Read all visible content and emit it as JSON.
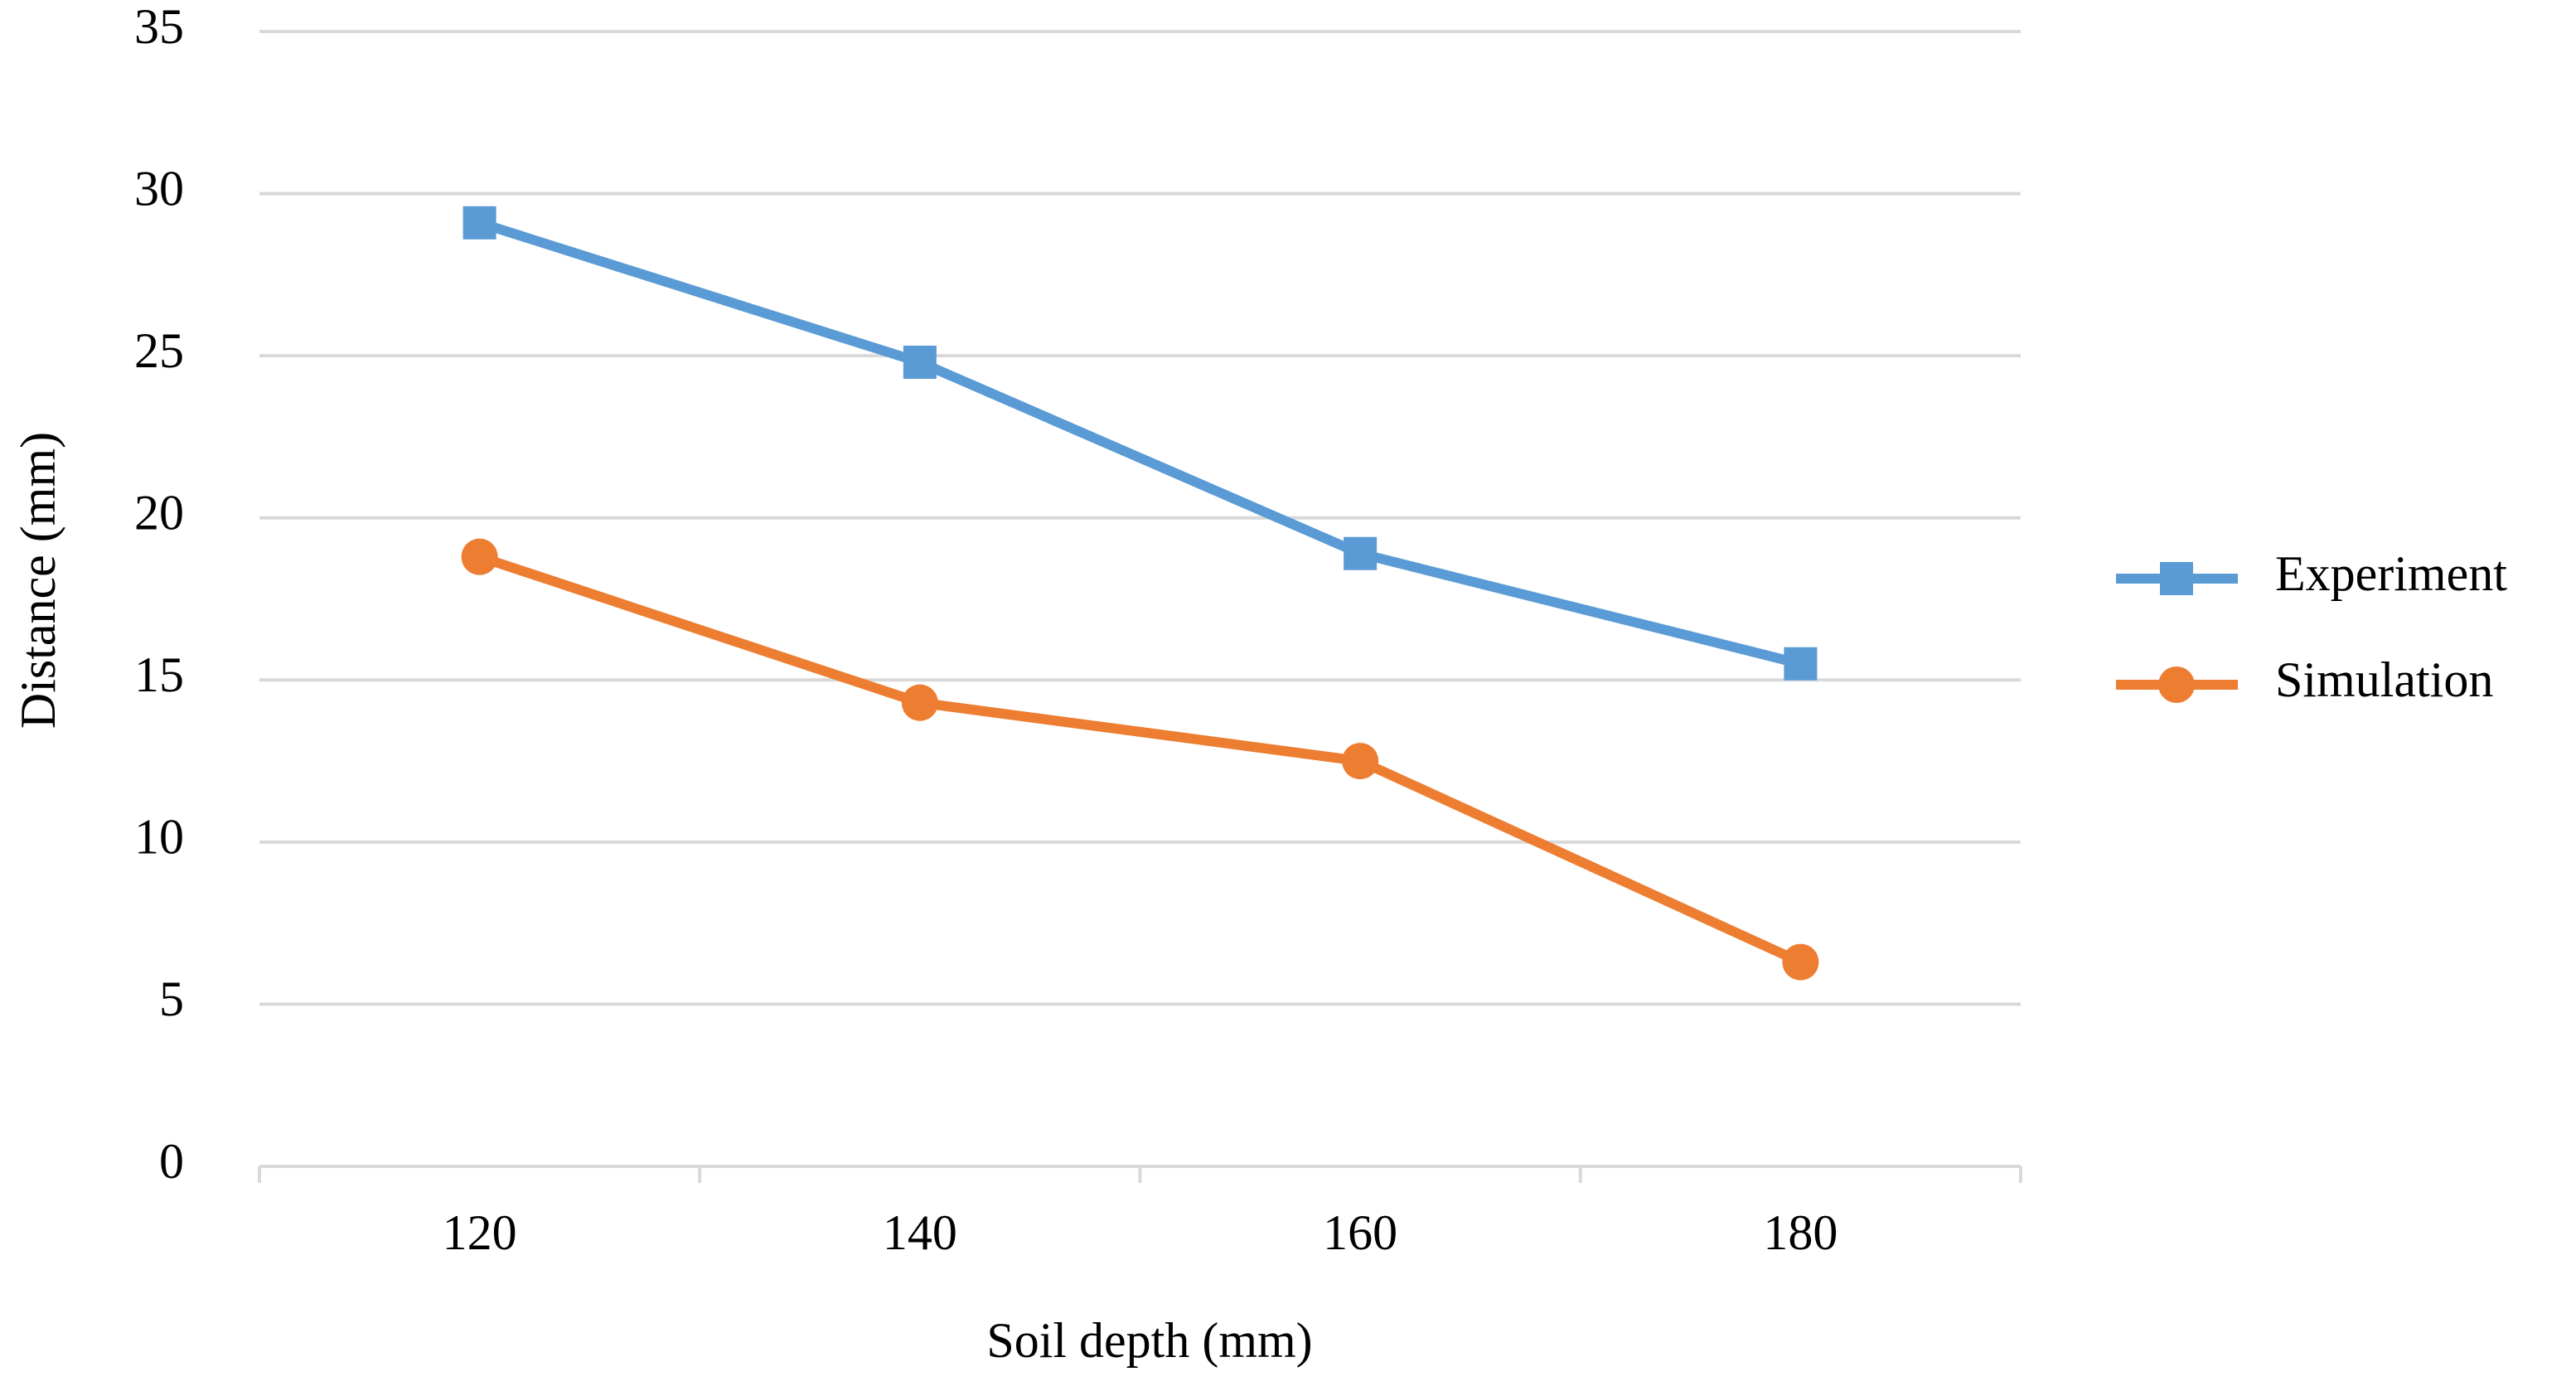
{
  "chart_data": {
    "type": "line",
    "x_label": "Soil depth (mm)",
    "y_label": "Distance (mm)",
    "categories": [
      "120",
      "140",
      "160",
      "180"
    ],
    "series": [
      {
        "name": "Experiment",
        "color": "#5b9bd5",
        "marker": "square",
        "values": [
          29.1,
          24.8,
          18.9,
          15.5
        ]
      },
      {
        "name": "Simulation",
        "color": "#ed7d31",
        "marker": "circle",
        "values": [
          18.8,
          14.3,
          12.5,
          6.3
        ]
      }
    ],
    "ylim": [
      0,
      35
    ],
    "yticks": [
      0,
      5,
      10,
      15,
      20,
      25,
      30,
      35
    ],
    "grid": true,
    "legend": "right"
  }
}
